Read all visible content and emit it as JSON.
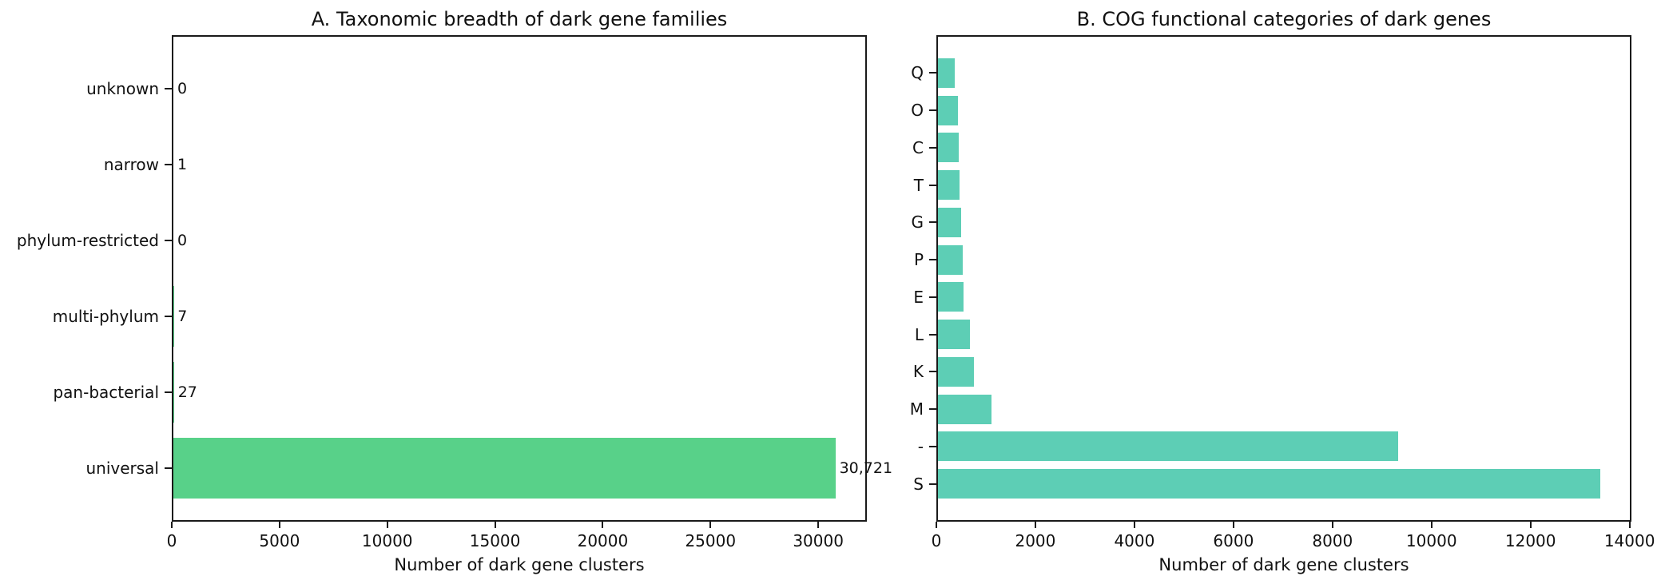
{
  "figure_title": "",
  "chart_data": [
    {
      "type": "bar",
      "orientation": "horizontal",
      "title": "A. Taxonomic breadth of dark gene families",
      "xlabel": "Number of dark gene clusters",
      "categories": [
        "unknown",
        "narrow",
        "phylum-restricted",
        "multi-phylum",
        "pan-bacterial",
        "universal"
      ],
      "values": [
        0,
        1,
        0,
        7,
        27,
        30721
      ],
      "value_labels": [
        "0",
        "1",
        "0",
        "7",
        "27",
        "30,721"
      ],
      "bar_color": "#58d189",
      "xlim": [
        0,
        32257
      ],
      "xticks": [
        0,
        5000,
        10000,
        15000,
        20000,
        25000,
        30000
      ],
      "grid": false,
      "legend": null
    },
    {
      "type": "bar",
      "orientation": "horizontal",
      "title": "B. COG functional categories of dark genes",
      "xlabel": "Number of dark gene clusters",
      "categories": [
        "Q",
        "O",
        "C",
        "T",
        "G",
        "P",
        "E",
        "L",
        "K",
        "M",
        "-",
        "S"
      ],
      "values": [
        340,
        400,
        420,
        435,
        460,
        500,
        510,
        640,
        720,
        1075,
        9290,
        13370
      ],
      "value_labels": null,
      "bar_color": "#5dceb5",
      "xlim": [
        0,
        14038
      ],
      "xticks": [
        0,
        2000,
        4000,
        6000,
        8000,
        10000,
        12000,
        14000
      ],
      "grid": false,
      "legend": null
    }
  ]
}
